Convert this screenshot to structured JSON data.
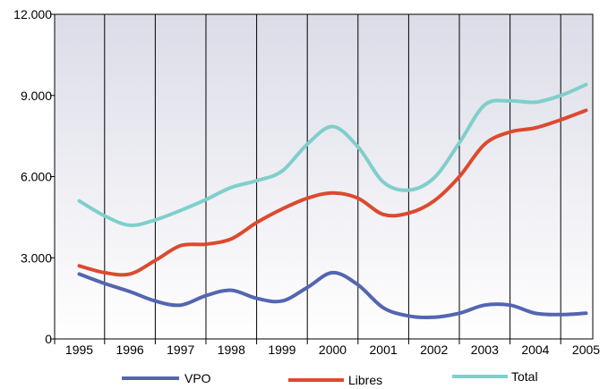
{
  "chart_data": {
    "type": "line",
    "x": [
      "1995",
      "1996",
      "1997",
      "1998",
      "1999",
      "2000",
      "2001",
      "2002",
      "2003",
      "2004",
      "2005"
    ],
    "ylim": [
      0,
      12000
    ],
    "yticks": [
      {
        "value": 0,
        "label": "0"
      },
      {
        "value": 3000,
        "label": "3.000"
      },
      {
        "value": 6000,
        "label": "6.000"
      },
      {
        "value": 9000,
        "label": "9.000"
      },
      {
        "value": 12000,
        "label": "12.000"
      }
    ],
    "grid": "vertical",
    "legend": "bottom",
    "series": [
      {
        "name": "VPO",
        "color": "#5465b0",
        "x": [
          1995,
          1995.5,
          1996,
          1996.5,
          1997,
          1997.5,
          1998,
          1998.5,
          1999,
          1999.5,
          2000,
          2000.5,
          2001,
          2001.5,
          2002,
          2002.5,
          2003,
          2003.5,
          2004,
          2004.5,
          2005
        ],
        "values": [
          2400,
          2050,
          1750,
          1400,
          1250,
          1600,
          1800,
          1500,
          1400,
          1900,
          2450,
          2000,
          1150,
          850,
          800,
          950,
          1250,
          1250,
          950,
          900,
          950
        ]
      },
      {
        "name": "Libres",
        "color": "#dc4a2e",
        "x": [
          1995,
          1995.5,
          1996,
          1996.5,
          1997,
          1997.5,
          1998,
          1998.5,
          1999,
          1999.5,
          2000,
          2000.5,
          2001,
          2001.5,
          2002,
          2002.5,
          2003,
          2003.5,
          2004,
          2004.5,
          2005
        ],
        "values": [
          2700,
          2450,
          2400,
          2900,
          3450,
          3500,
          3700,
          4300,
          4800,
          5200,
          5400,
          5200,
          4600,
          4650,
          5100,
          6000,
          7200,
          7650,
          7800,
          8100,
          8450
        ]
      },
      {
        "name": "Total",
        "color": "#7fcfcb",
        "x": [
          1995,
          1995.5,
          1996,
          1996.5,
          1997,
          1997.5,
          1998,
          1998.5,
          1999,
          1999.5,
          2000,
          2000.5,
          2001,
          2001.5,
          2002,
          2002.5,
          2003,
          2003.5,
          2004,
          2004.5,
          2005
        ],
        "values": [
          5100,
          4550,
          4200,
          4400,
          4750,
          5150,
          5600,
          5850,
          6200,
          7200,
          7850,
          7100,
          5800,
          5500,
          5950,
          7250,
          8650,
          8800,
          8750,
          9000,
          9400
        ]
      }
    ]
  }
}
